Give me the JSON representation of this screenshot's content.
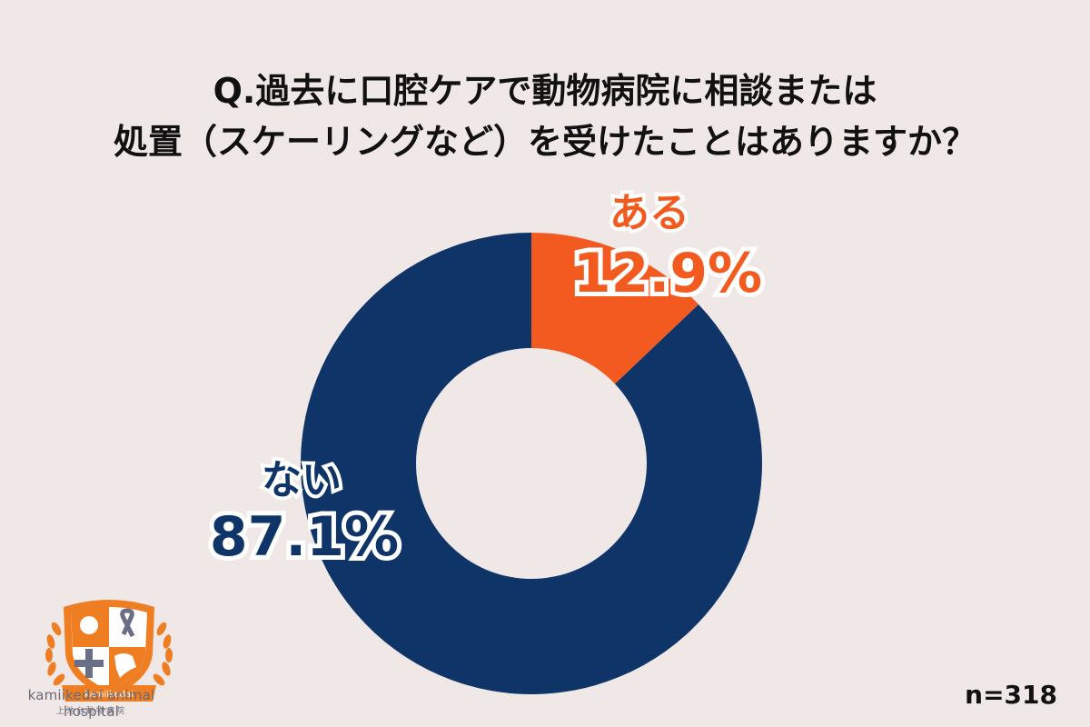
{
  "title": {
    "line1": "Q.過去に口腔ケアで動物病院に相談または",
    "line2": "処置（スケーリングなど）を受けたことはありますか？"
  },
  "labels": {
    "yes_name": "ある",
    "yes_value": "12.9%",
    "no_name": "ない",
    "no_value": "87.1%"
  },
  "sample_size": "n=318",
  "logo": {
    "badge_text": "kamiikedai",
    "name_en": "kamiikedai animal hospital",
    "name_ja": "上池台動物病院"
  },
  "colors": {
    "background": "#efe8e6",
    "yes": "#f35a1f",
    "no": "#0f3468",
    "logo_orange": "#ef7d22",
    "logo_gray": "#6a6f86"
  },
  "chart_data": {
    "type": "pie",
    "subtype": "donut",
    "title": "Q.過去に口腔ケアで動物病院に相談または処置（スケーリングなど）を受けたことはありますか？",
    "categories": [
      "ある",
      "ない"
    ],
    "values": [
      12.9,
      87.1
    ],
    "unit": "%",
    "colors": [
      "#f35a1f",
      "#0f3468"
    ],
    "start_angle_deg": 0,
    "direction": "clockwise",
    "sample_size": 318,
    "legend": "none (direct labels)",
    "annotations": [
      "n=318"
    ]
  }
}
